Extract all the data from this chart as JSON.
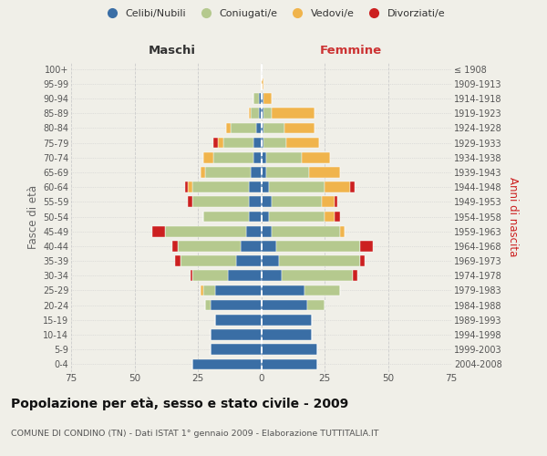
{
  "age_groups": [
    "0-4",
    "5-9",
    "10-14",
    "15-19",
    "20-24",
    "25-29",
    "30-34",
    "35-39",
    "40-44",
    "45-49",
    "50-54",
    "55-59",
    "60-64",
    "65-69",
    "70-74",
    "75-79",
    "80-84",
    "85-89",
    "90-94",
    "95-99",
    "100+"
  ],
  "birth_years": [
    "2004-2008",
    "1999-2003",
    "1994-1998",
    "1989-1993",
    "1984-1988",
    "1979-1983",
    "1974-1978",
    "1969-1973",
    "1964-1968",
    "1959-1963",
    "1954-1958",
    "1949-1953",
    "1944-1948",
    "1939-1943",
    "1934-1938",
    "1929-1933",
    "1924-1928",
    "1919-1923",
    "1914-1918",
    "1909-1913",
    "≤ 1908"
  ],
  "maschi_celibi": [
    27,
    20,
    20,
    18,
    20,
    18,
    13,
    10,
    8,
    6,
    5,
    5,
    5,
    4,
    3,
    3,
    2,
    1,
    1,
    0,
    0
  ],
  "maschi_coniugati": [
    0,
    0,
    0,
    0,
    2,
    5,
    14,
    22,
    25,
    32,
    18,
    22,
    22,
    18,
    16,
    12,
    10,
    3,
    2,
    0,
    0
  ],
  "maschi_vedovi": [
    0,
    0,
    0,
    0,
    0,
    1,
    0,
    0,
    0,
    0,
    0,
    0,
    2,
    2,
    4,
    2,
    2,
    1,
    0,
    0,
    0
  ],
  "maschi_divorziati": [
    0,
    0,
    0,
    0,
    0,
    0,
    1,
    2,
    2,
    5,
    0,
    2,
    1,
    0,
    0,
    2,
    0,
    0,
    0,
    0,
    0
  ],
  "femmine_nubili": [
    22,
    22,
    20,
    20,
    18,
    17,
    8,
    7,
    6,
    4,
    3,
    4,
    3,
    2,
    2,
    1,
    1,
    1,
    1,
    0,
    0
  ],
  "femmine_coniugate": [
    0,
    0,
    0,
    0,
    7,
    14,
    28,
    32,
    33,
    27,
    22,
    20,
    22,
    17,
    14,
    9,
    8,
    3,
    0,
    0,
    0
  ],
  "femmine_vedove": [
    0,
    0,
    0,
    0,
    0,
    0,
    0,
    0,
    0,
    2,
    4,
    5,
    10,
    12,
    11,
    13,
    12,
    17,
    3,
    1,
    0
  ],
  "femmine_divorziate": [
    0,
    0,
    0,
    0,
    0,
    0,
    2,
    2,
    5,
    0,
    2,
    1,
    2,
    0,
    0,
    0,
    0,
    0,
    0,
    0,
    0
  ],
  "color_celibi": "#3a6ea5",
  "color_coniugati": "#b5c98e",
  "color_vedovi": "#f0b44c",
  "color_divorziati": "#cc2020",
  "xlim": 75,
  "title": "Popolazione per età, sesso e stato civile - 2009",
  "subtitle": "COMUNE DI CONDINO (TN) - Dati ISTAT 1° gennaio 2009 - Elaborazione TUTTITALIA.IT",
  "bg_color": "#f0efe8",
  "grid_color": "#cccccc"
}
